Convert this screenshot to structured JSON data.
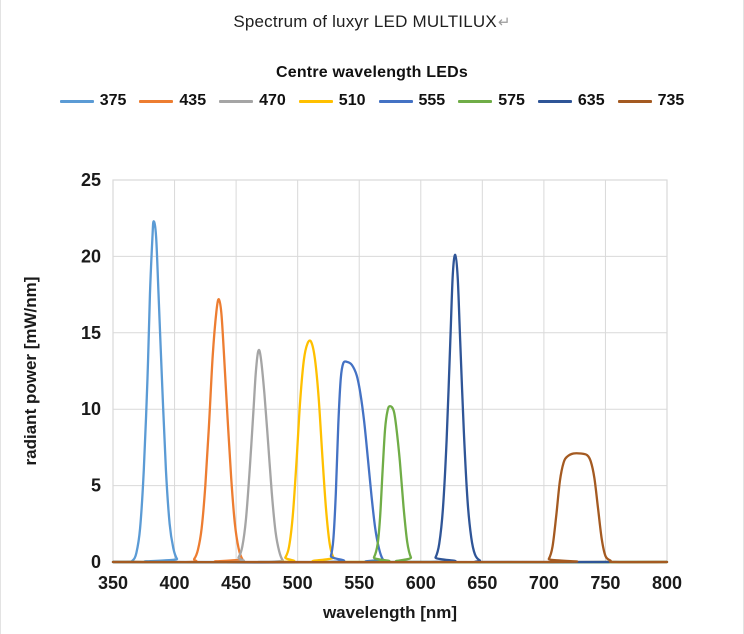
{
  "page": {
    "paragraph_mark": "↵"
  },
  "chart_data": {
    "type": "line",
    "title": "Spectrum of luxyr LED MULTILUX",
    "legend_title": "Centre wavelength LEDs",
    "legend_position": "top",
    "xlabel": "wavelength [nm]",
    "ylabel": "radiant power [mW/nm]",
    "xlim": [
      350,
      800
    ],
    "ylim": [
      0,
      25
    ],
    "x_ticks": [
      350,
      400,
      450,
      500,
      550,
      600,
      650,
      700,
      750,
      800
    ],
    "y_ticks": [
      0,
      5,
      10,
      15,
      20,
      25
    ],
    "grid": true,
    "grid_color": "#D9D9D9",
    "axis_text_color": "#1a1a1a",
    "series": [
      {
        "name": "375",
        "color": "#5B9BD5",
        "peak_wavelength": 383,
        "peak_value": 22.3,
        "points": [
          [
            350,
            0
          ],
          [
            362,
            0
          ],
          [
            366,
            0.1
          ],
          [
            369,
            0.6
          ],
          [
            372,
            2.2
          ],
          [
            375,
            6
          ],
          [
            378,
            12
          ],
          [
            380,
            17.5
          ],
          [
            382,
            21.2
          ],
          [
            383,
            22.3
          ],
          [
            385,
            21.3
          ],
          [
            387,
            17.5
          ],
          [
            390,
            11.5
          ],
          [
            393,
            6
          ],
          [
            396,
            2.5
          ],
          [
            399,
            0.9
          ],
          [
            402,
            0.2
          ],
          [
            406,
            0
          ],
          [
            800,
            0
          ]
        ]
      },
      {
        "name": "435",
        "color": "#ED7D31",
        "peak_wavelength": 436,
        "peak_value": 17.2,
        "points": [
          [
            350,
            0
          ],
          [
            412,
            0
          ],
          [
            416,
            0.2
          ],
          [
            419,
            0.8
          ],
          [
            422,
            2.2
          ],
          [
            425,
            5
          ],
          [
            428,
            9
          ],
          [
            431,
            13.5
          ],
          [
            434,
            16.4
          ],
          [
            436,
            17.2
          ],
          [
            438,
            16.3
          ],
          [
            440,
            13.8
          ],
          [
            443,
            9.5
          ],
          [
            446,
            5.5
          ],
          [
            449,
            2.5
          ],
          [
            452,
            0.9
          ],
          [
            455,
            0.2
          ],
          [
            459,
            0
          ],
          [
            800,
            0
          ]
        ]
      },
      {
        "name": "470",
        "color": "#A5A5A5",
        "peak_wavelength": 468,
        "peak_value": 13.8,
        "points": [
          [
            350,
            0
          ],
          [
            448,
            0
          ],
          [
            452,
            0.3
          ],
          [
            455,
            1
          ],
          [
            458,
            2.8
          ],
          [
            461,
            6
          ],
          [
            464,
            9.8
          ],
          [
            466,
            12.4
          ],
          [
            468,
            13.8
          ],
          [
            470,
            13.4
          ],
          [
            473,
            11
          ],
          [
            476,
            7.8
          ],
          [
            479,
            4.5
          ],
          [
            482,
            2
          ],
          [
            485,
            0.7
          ],
          [
            488,
            0.1
          ],
          [
            492,
            0
          ],
          [
            800,
            0
          ]
        ]
      },
      {
        "name": "510",
        "color": "#FFC000",
        "peak_wavelength": 510,
        "peak_value": 14.4,
        "points": [
          [
            350,
            0
          ],
          [
            486,
            0
          ],
          [
            490,
            0.3
          ],
          [
            493,
            1
          ],
          [
            496,
            3
          ],
          [
            499,
            6.5
          ],
          [
            502,
            10.5
          ],
          [
            505,
            13.2
          ],
          [
            508,
            14.3
          ],
          [
            511,
            14.4
          ],
          [
            514,
            13.3
          ],
          [
            517,
            10.8
          ],
          [
            520,
            7
          ],
          [
            523,
            3.5
          ],
          [
            526,
            1.2
          ],
          [
            529,
            0.3
          ],
          [
            533,
            0
          ],
          [
            800,
            0
          ]
        ]
      },
      {
        "name": "555",
        "color": "#4472C4",
        "peak_wavelength": 540,
        "peak_value": 13.1,
        "points": [
          [
            350,
            0
          ],
          [
            524,
            0
          ],
          [
            527,
            0.4
          ],
          [
            529,
            1.5
          ],
          [
            531,
            4.5
          ],
          [
            533,
            9
          ],
          [
            535,
            12
          ],
          [
            537,
            13
          ],
          [
            540,
            13.1
          ],
          [
            544,
            12.9
          ],
          [
            548,
            12.2
          ],
          [
            551,
            11
          ],
          [
            554,
            9.2
          ],
          [
            557,
            6.8
          ],
          [
            560,
            4.3
          ],
          [
            563,
            2.2
          ],
          [
            566,
            0.9
          ],
          [
            569,
            0.2
          ],
          [
            573,
            0
          ],
          [
            800,
            0
          ]
        ]
      },
      {
        "name": "575",
        "color": "#70AD47",
        "peak_wavelength": 575,
        "peak_value": 10.2,
        "points": [
          [
            350,
            0
          ],
          [
            558,
            0
          ],
          [
            562,
            0.3
          ],
          [
            565,
            1.2
          ],
          [
            567,
            3
          ],
          [
            569,
            6
          ],
          [
            571,
            8.7
          ],
          [
            573,
            9.9
          ],
          [
            575,
            10.2
          ],
          [
            578,
            9.9
          ],
          [
            580,
            8.9
          ],
          [
            583,
            6.6
          ],
          [
            586,
            3.6
          ],
          [
            589,
            1.3
          ],
          [
            592,
            0.3
          ],
          [
            596,
            0
          ],
          [
            800,
            0
          ]
        ]
      },
      {
        "name": "635",
        "color": "#2F5597",
        "peak_wavelength": 628,
        "peak_value": 20.1,
        "points": [
          [
            350,
            0
          ],
          [
            608,
            0
          ],
          [
            612,
            0.3
          ],
          [
            615,
            1.2
          ],
          [
            618,
            3.5
          ],
          [
            621,
            8
          ],
          [
            624,
            14.5
          ],
          [
            626,
            18.8
          ],
          [
            628,
            20.1
          ],
          [
            630,
            18.6
          ],
          [
            632,
            14.5
          ],
          [
            635,
            8.5
          ],
          [
            638,
            4
          ],
          [
            641,
            1.6
          ],
          [
            644,
            0.5
          ],
          [
            648,
            0.1
          ],
          [
            653,
            0
          ],
          [
            753,
            0
          ]
        ]
      },
      {
        "name": "735",
        "color": "#A45A21",
        "peak_wavelength": 730,
        "peak_value": 7.1,
        "points": [
          [
            350,
            0
          ],
          [
            700,
            0
          ],
          [
            704,
            0.2
          ],
          [
            707,
            1
          ],
          [
            710,
            3
          ],
          [
            713,
            5.3
          ],
          [
            716,
            6.5
          ],
          [
            719,
            6.9
          ],
          [
            724,
            7.1
          ],
          [
            730,
            7.1
          ],
          [
            735,
            7
          ],
          [
            738,
            6.6
          ],
          [
            741,
            5.5
          ],
          [
            744,
            3.5
          ],
          [
            747,
            1.5
          ],
          [
            750,
            0.4
          ],
          [
            754,
            0.1
          ],
          [
            758,
            0
          ],
          [
            800,
            0
          ]
        ]
      }
    ]
  }
}
